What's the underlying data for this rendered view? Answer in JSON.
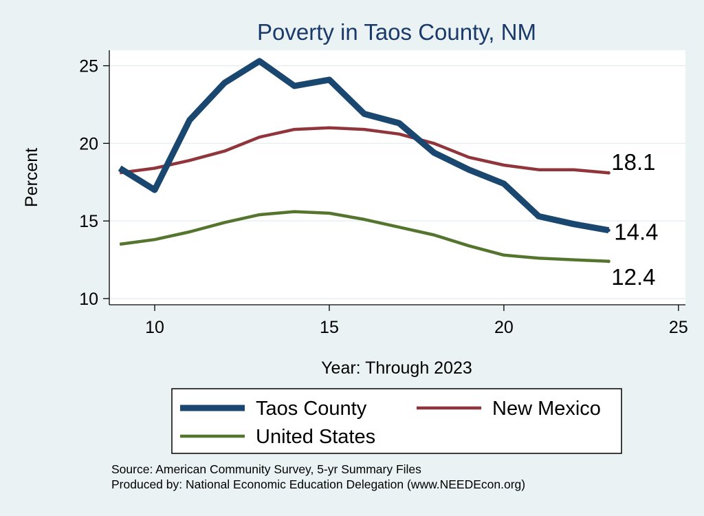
{
  "chart_data": {
    "type": "line",
    "title": "Poverty in Taos County, NM",
    "xlabel": "Year: Through 2023",
    "ylabel": "Percent",
    "xlim": [
      8.7,
      25.2
    ],
    "ylim": [
      9.6,
      26
    ],
    "x_ticks": [
      10,
      15,
      20,
      25
    ],
    "y_ticks": [
      10,
      15,
      20,
      25
    ],
    "grid": true,
    "legend_position": "bottom",
    "series": [
      {
        "name": "Taos County",
        "color": "#1a476f",
        "x": [
          9,
          10,
          11,
          12,
          13,
          14,
          15,
          16,
          17,
          18,
          19,
          20,
          21,
          22,
          23
        ],
        "values": [
          18.4,
          17.0,
          21.5,
          23.9,
          25.3,
          23.7,
          24.1,
          21.9,
          21.3,
          19.4,
          18.3,
          17.4,
          15.3,
          14.8,
          14.4
        ],
        "end_label": "14.4"
      },
      {
        "name": "New Mexico",
        "color": "#90353b",
        "x": [
          9,
          10,
          11,
          12,
          13,
          14,
          15,
          16,
          17,
          18,
          19,
          20,
          21,
          22,
          23
        ],
        "values": [
          18.1,
          18.4,
          18.9,
          19.5,
          20.4,
          20.9,
          21.0,
          20.9,
          20.6,
          20.0,
          19.1,
          18.6,
          18.3,
          18.3,
          18.1
        ],
        "end_label": "18.1"
      },
      {
        "name": "United States",
        "color": "#55752f",
        "x": [
          9,
          10,
          11,
          12,
          13,
          14,
          15,
          16,
          17,
          18,
          19,
          20,
          21,
          22,
          23
        ],
        "values": [
          13.5,
          13.8,
          14.3,
          14.9,
          15.4,
          15.6,
          15.5,
          15.1,
          14.6,
          14.1,
          13.4,
          12.8,
          12.6,
          12.5,
          12.4
        ],
        "end_label": "12.4"
      }
    ]
  },
  "notes": {
    "source": "Source: American Community Survey, 5-yr Summary Files",
    "produced_by": "Produced by: National Economic Education Delegation (www.NEEDEcon.org)"
  }
}
